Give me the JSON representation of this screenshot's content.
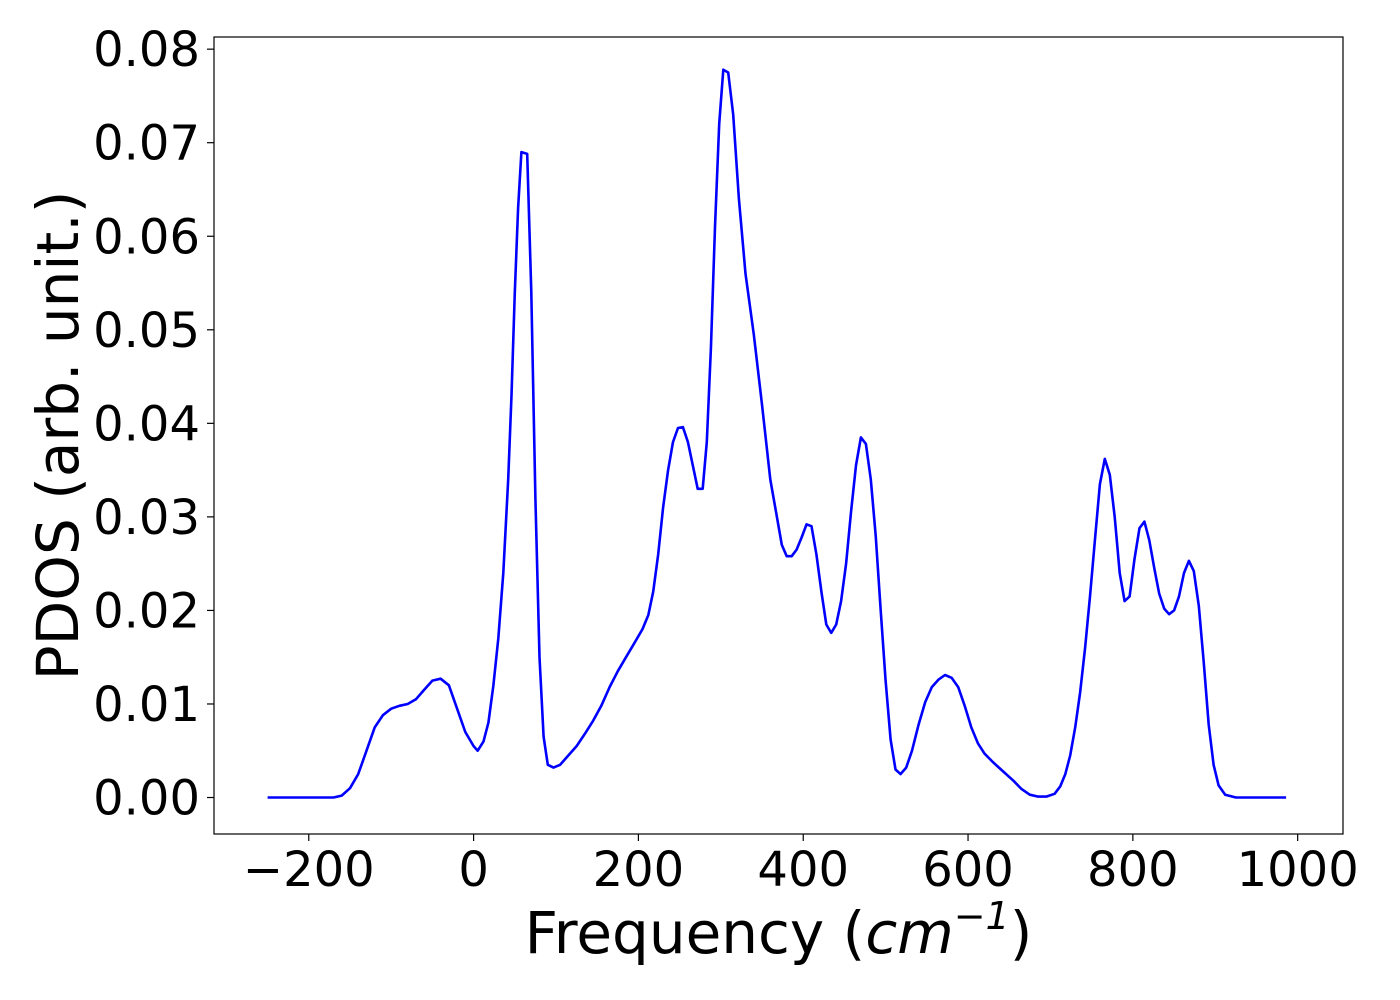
{
  "chart_data": {
    "type": "line",
    "xlabel": "Frequency (",
    "xlabel_unit_base": "cm",
    "xlabel_unit_exp": "−1",
    "xlabel_close": ")",
    "ylabel": "PDOS (arb. unit.)",
    "xlim": [
      -315,
      1055
    ],
    "ylim": [
      -0.0039,
      0.0813
    ],
    "x_ticks": [
      -200,
      0,
      200,
      400,
      600,
      800,
      1000
    ],
    "x_tick_labels": [
      "−200",
      "0",
      "200",
      "400",
      "600",
      "800",
      "1000"
    ],
    "y_ticks": [
      0,
      0.01,
      0.02,
      0.03,
      0.04,
      0.05,
      0.06,
      0.07,
      0.08
    ],
    "y_tick_labels": [
      "0.00",
      "0.01",
      "0.02",
      "0.03",
      "0.04",
      "0.05",
      "0.06",
      "0.07",
      "0.08"
    ],
    "grid": false,
    "legend": "none",
    "series": [
      {
        "color": "#0000ff",
        "points": [
          [
            -250,
            0.0
          ],
          [
            -200,
            0.0
          ],
          [
            -170,
            0.0
          ],
          [
            -160,
            0.0002
          ],
          [
            -150,
            0.001
          ],
          [
            -140,
            0.0025
          ],
          [
            -130,
            0.005
          ],
          [
            -120,
            0.0075
          ],
          [
            -110,
            0.0088
          ],
          [
            -100,
            0.0095
          ],
          [
            -90,
            0.0098
          ],
          [
            -80,
            0.01
          ],
          [
            -70,
            0.0105
          ],
          [
            -60,
            0.0115
          ],
          [
            -50,
            0.0125
          ],
          [
            -40,
            0.0127
          ],
          [
            -30,
            0.012
          ],
          [
            -20,
            0.0095
          ],
          [
            -10,
            0.007
          ],
          [
            0,
            0.0055
          ],
          [
            5,
            0.005
          ],
          [
            12,
            0.006
          ],
          [
            18,
            0.008
          ],
          [
            24,
            0.012
          ],
          [
            30,
            0.017
          ],
          [
            36,
            0.024
          ],
          [
            42,
            0.034
          ],
          [
            46,
            0.043
          ],
          [
            50,
            0.054
          ],
          [
            54,
            0.063
          ],
          [
            58,
            0.069
          ],
          [
            65,
            0.0688
          ],
          [
            70,
            0.054
          ],
          [
            75,
            0.032
          ],
          [
            80,
            0.015
          ],
          [
            85,
            0.0065
          ],
          [
            90,
            0.0035
          ],
          [
            97,
            0.0032
          ],
          [
            105,
            0.0035
          ],
          [
            115,
            0.0045
          ],
          [
            125,
            0.0055
          ],
          [
            135,
            0.0068
          ],
          [
            145,
            0.0082
          ],
          [
            155,
            0.0098
          ],
          [
            165,
            0.0118
          ],
          [
            175,
            0.0135
          ],
          [
            185,
            0.015
          ],
          [
            195,
            0.0165
          ],
          [
            205,
            0.018
          ],
          [
            212,
            0.0195
          ],
          [
            218,
            0.022
          ],
          [
            224,
            0.026
          ],
          [
            230,
            0.031
          ],
          [
            236,
            0.035
          ],
          [
            242,
            0.038
          ],
          [
            248,
            0.0395
          ],
          [
            254,
            0.0396
          ],
          [
            260,
            0.038
          ],
          [
            266,
            0.0355
          ],
          [
            272,
            0.033
          ],
          [
            278,
            0.033
          ],
          [
            283,
            0.038
          ],
          [
            288,
            0.048
          ],
          [
            293,
            0.061
          ],
          [
            298,
            0.072
          ],
          [
            303,
            0.0778
          ],
          [
            309,
            0.0775
          ],
          [
            315,
            0.073
          ],
          [
            322,
            0.064
          ],
          [
            330,
            0.056
          ],
          [
            340,
            0.0495
          ],
          [
            350,
            0.042
          ],
          [
            360,
            0.034
          ],
          [
            368,
            0.03
          ],
          [
            374,
            0.027
          ],
          [
            380,
            0.0258
          ],
          [
            386,
            0.0258
          ],
          [
            392,
            0.0265
          ],
          [
            398,
            0.0278
          ],
          [
            404,
            0.0292
          ],
          [
            410,
            0.029
          ],
          [
            416,
            0.026
          ],
          [
            422,
            0.022
          ],
          [
            428,
            0.0185
          ],
          [
            434,
            0.0176
          ],
          [
            440,
            0.0185
          ],
          [
            446,
            0.021
          ],
          [
            452,
            0.025
          ],
          [
            458,
            0.0305
          ],
          [
            464,
            0.0355
          ],
          [
            470,
            0.0385
          ],
          [
            476,
            0.0378
          ],
          [
            482,
            0.034
          ],
          [
            488,
            0.028
          ],
          [
            494,
            0.02
          ],
          [
            500,
            0.0125
          ],
          [
            506,
            0.0062
          ],
          [
            512,
            0.003
          ],
          [
            518,
            0.0025
          ],
          [
            525,
            0.0032
          ],
          [
            532,
            0.005
          ],
          [
            540,
            0.0078
          ],
          [
            548,
            0.0102
          ],
          [
            556,
            0.0118
          ],
          [
            564,
            0.0126
          ],
          [
            572,
            0.0131
          ],
          [
            580,
            0.0128
          ],
          [
            588,
            0.0118
          ],
          [
            596,
            0.0098
          ],
          [
            604,
            0.0075
          ],
          [
            612,
            0.0058
          ],
          [
            620,
            0.0047
          ],
          [
            630,
            0.0038
          ],
          [
            640,
            0.003
          ],
          [
            655,
            0.0018
          ],
          [
            665,
            0.0009
          ],
          [
            675,
            0.0003
          ],
          [
            685,
            0.0001
          ],
          [
            695,
            0.0001
          ],
          [
            705,
            0.0004
          ],
          [
            712,
            0.0012
          ],
          [
            718,
            0.0025
          ],
          [
            724,
            0.0045
          ],
          [
            730,
            0.0075
          ],
          [
            736,
            0.0112
          ],
          [
            742,
            0.016
          ],
          [
            748,
            0.0215
          ],
          [
            754,
            0.0275
          ],
          [
            760,
            0.0335
          ],
          [
            766,
            0.0362
          ],
          [
            772,
            0.0345
          ],
          [
            778,
            0.03
          ],
          [
            784,
            0.024
          ],
          [
            790,
            0.021
          ],
          [
            796,
            0.0215
          ],
          [
            802,
            0.0255
          ],
          [
            808,
            0.0288
          ],
          [
            814,
            0.0295
          ],
          [
            820,
            0.0275
          ],
          [
            826,
            0.0245
          ],
          [
            832,
            0.0218
          ],
          [
            838,
            0.0202
          ],
          [
            844,
            0.0196
          ],
          [
            850,
            0.02
          ],
          [
            856,
            0.0215
          ],
          [
            862,
            0.024
          ],
          [
            868,
            0.0253
          ],
          [
            874,
            0.0242
          ],
          [
            880,
            0.0205
          ],
          [
            886,
            0.0145
          ],
          [
            892,
            0.0078
          ],
          [
            898,
            0.0035
          ],
          [
            904,
            0.0013
          ],
          [
            912,
            0.0003
          ],
          [
            925,
            0.0
          ],
          [
            960,
            0.0
          ],
          [
            986,
            0.0
          ]
        ]
      }
    ]
  }
}
